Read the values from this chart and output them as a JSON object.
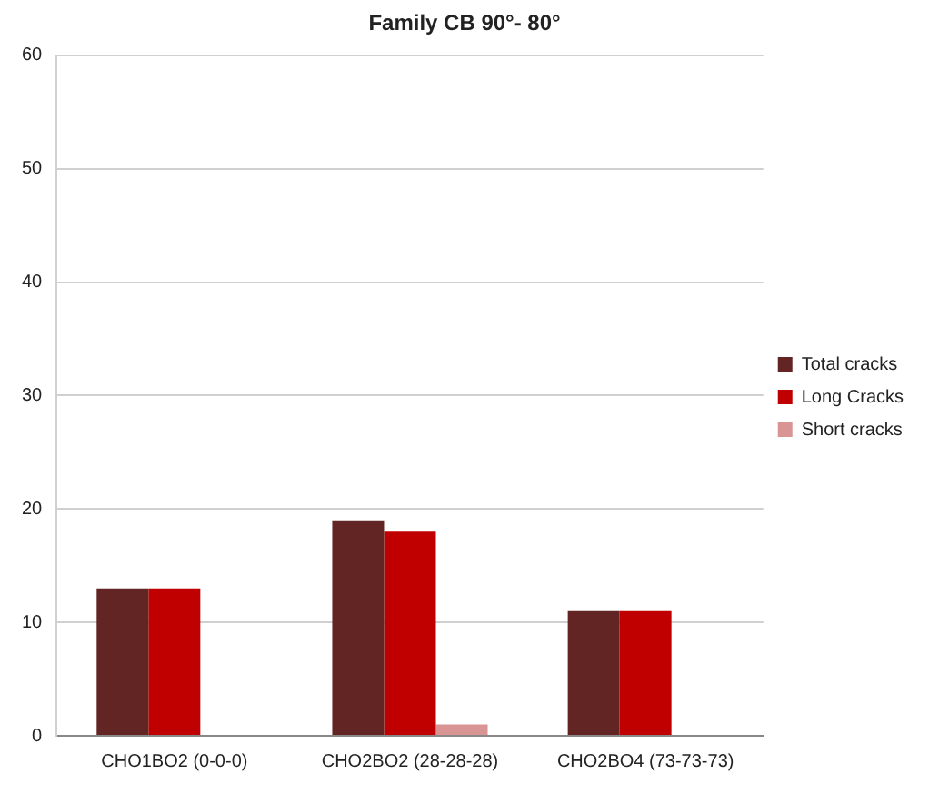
{
  "chart_data": {
    "type": "bar",
    "title": "Family CB 90°- 80°",
    "categories": [
      "CHO1BO2 (0-0-0)",
      "CHO2BO2 (28-28-28)",
      "CHO2BO4 (73-73-73)"
    ],
    "series": [
      {
        "name": "Total cracks",
        "color": "#632523",
        "values": [
          13,
          19,
          11
        ]
      },
      {
        "name": "Long Cracks",
        "color": "#c00000",
        "values": [
          13,
          18,
          11
        ]
      },
      {
        "name": "Short cracks",
        "color": "#d99594",
        "values": [
          0,
          1,
          0
        ]
      }
    ],
    "ylim": [
      0,
      60
    ],
    "yticks": [
      0,
      10,
      20,
      30,
      40,
      50,
      60
    ],
    "grid": "y",
    "legend": "right"
  }
}
